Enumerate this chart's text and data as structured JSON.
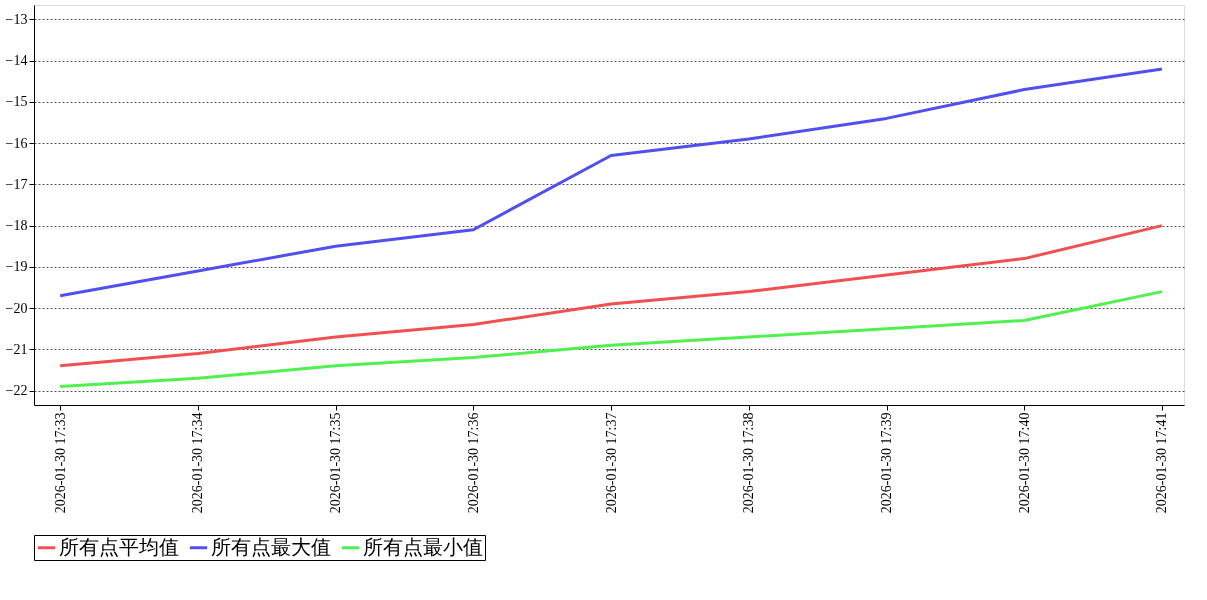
{
  "chart_data": {
    "type": "line",
    "categories": [
      "2026-01-30  17:33",
      "2026-01-30  17:34",
      "2026-01-30  17:35",
      "2026-01-30  17:36",
      "2026-01-30  17:37",
      "2026-01-30  17:38",
      "2026-01-30  17:39",
      "2026-01-30  17:40",
      "2026-01-30  17:41"
    ],
    "series": [
      {
        "name": "所有点平均值",
        "color": "#f05050",
        "values": [
          -21.4,
          -21.1,
          -20.7,
          -20.4,
          -19.9,
          -19.6,
          -19.2,
          -18.8,
          -18.0
        ]
      },
      {
        "name": "所有点最大值",
        "color": "#5050f0",
        "values": [
          -19.7,
          -19.1,
          -18.5,
          -18.1,
          -16.3,
          -15.9,
          -15.4,
          -14.7,
          -14.2
        ]
      },
      {
        "name": "所有点最小值",
        "color": "#50f050",
        "values": [
          -21.9,
          -21.7,
          -21.4,
          -21.2,
          -20.9,
          -20.7,
          -20.5,
          -20.3,
          -19.6
        ]
      }
    ],
    "ylim": [
      -22.35,
      -12.65
    ],
    "yticks": [
      -22,
      -21,
      -20,
      -19,
      -18,
      -17,
      -16,
      -15,
      -14,
      -13
    ],
    "grid": "y",
    "legend": "bottom"
  }
}
